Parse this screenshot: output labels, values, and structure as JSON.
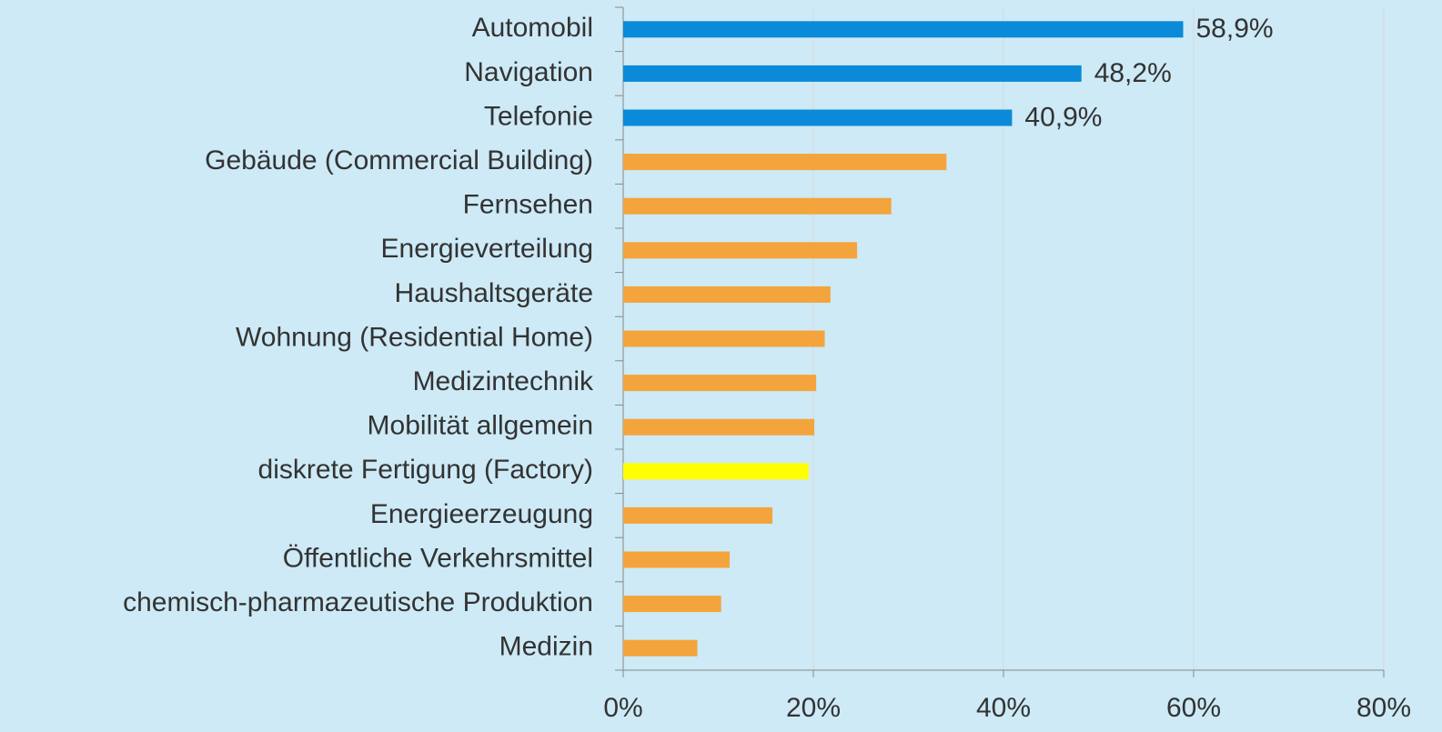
{
  "chart_data": {
    "type": "bar",
    "orientation": "horizontal",
    "categories": [
      "Automobil",
      "Navigation",
      "Telefonie",
      "Gebäude (Commercial Building)",
      "Fernsehen",
      "Energieverteilung",
      "Haushaltsgeräte",
      "Wohnung (Residential Home)",
      "Medizintechnik",
      "Mobilität allgemein",
      "diskrete Fertigung (Factory)",
      "Energieerzeugung",
      "Öffentliche Verkehrsmittel",
      "chemisch-pharmazeutische Produktion",
      "Medizin"
    ],
    "values": [
      58.9,
      48.2,
      40.9,
      34.0,
      28.2,
      24.6,
      21.8,
      21.2,
      20.3,
      20.1,
      19.5,
      15.7,
      11.2,
      10.3,
      7.8
    ],
    "value_labels": [
      "58,9%",
      "48,2%",
      "40,9%",
      null,
      null,
      null,
      null,
      null,
      null,
      null,
      null,
      null,
      null,
      null,
      null
    ],
    "colors": [
      "#0a8ad8",
      "#0a8ad8",
      "#0a8ad8",
      "#f4a43c",
      "#f4a43c",
      "#f4a43c",
      "#f4a43c",
      "#f4a43c",
      "#f4a43c",
      "#f4a43c",
      "#ffff00",
      "#f4a43c",
      "#f4a43c",
      "#f4a43c",
      "#f4a43c"
    ],
    "xlim": [
      0,
      80
    ],
    "xticks": [
      {
        "value": 0,
        "label": "0%"
      },
      {
        "value": 20,
        "label": "20%"
      },
      {
        "value": 40,
        "label": "40%"
      },
      {
        "value": 60,
        "label": "60%"
      },
      {
        "value": 80,
        "label": "80%"
      }
    ],
    "grid": true
  }
}
